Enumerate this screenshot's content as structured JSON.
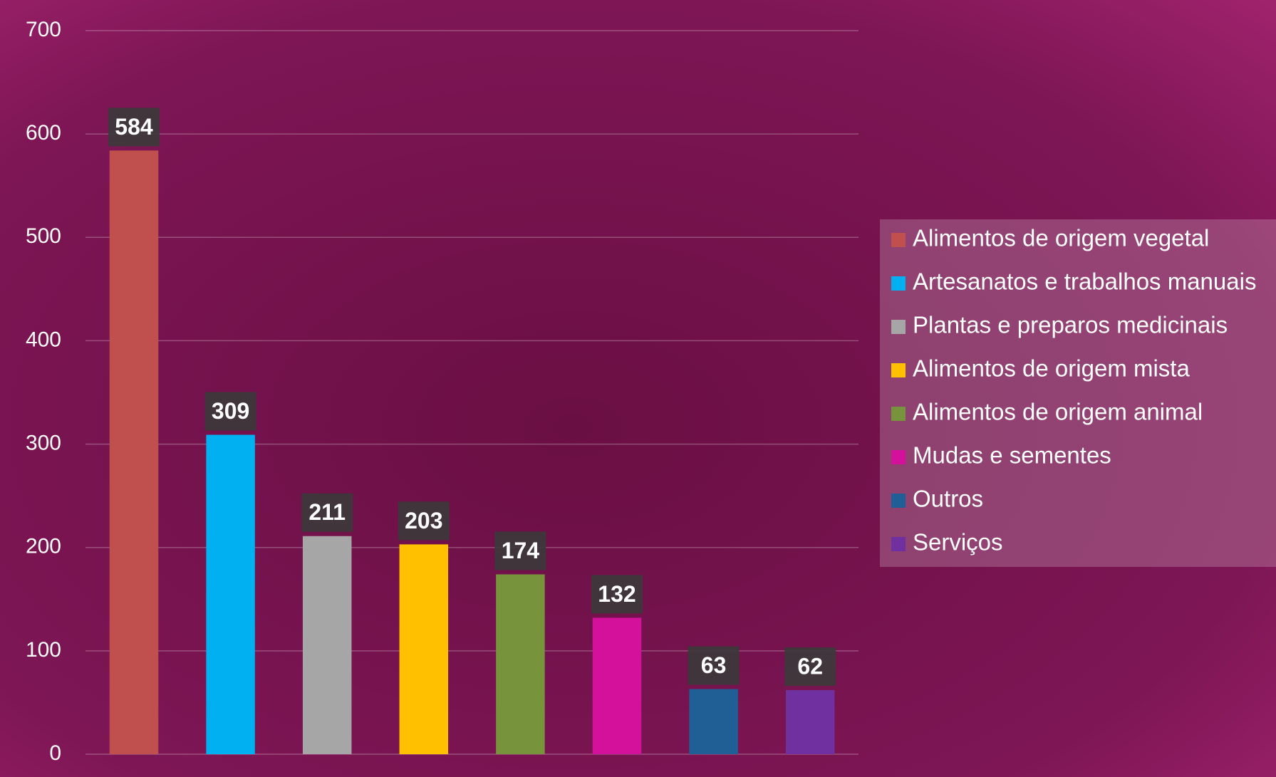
{
  "chart_data": {
    "type": "bar",
    "categories": [
      null
    ],
    "series": [
      {
        "name": "Alimentos de origem vegetal",
        "color": "#c0504d",
        "values": [
          584
        ]
      },
      {
        "name": "Artesanatos e trabalhos manuais",
        "color": "#00b0f0",
        "values": [
          309
        ]
      },
      {
        "name": "Plantas e preparos medicinais",
        "color": "#a6a6a6",
        "values": [
          211
        ]
      },
      {
        "name": "Alimentos de origem mista",
        "color": "#ffc000",
        "values": [
          203
        ]
      },
      {
        "name": "Alimentos de origem animal",
        "color": "#77933c",
        "values": [
          174
        ]
      },
      {
        "name": "Mudas e sementes",
        "color": "#d4119a",
        "values": [
          132
        ]
      },
      {
        "name": "Outros",
        "color": "#1f5f96",
        "values": [
          63
        ]
      },
      {
        "name": "Serviços",
        "color": "#7030a0",
        "values": [
          62
        ]
      }
    ],
    "ylim": [
      0,
      700
    ],
    "yticks": [
      0,
      100,
      200,
      300,
      400,
      500,
      600,
      700
    ],
    "grid": true,
    "legend": "right"
  }
}
